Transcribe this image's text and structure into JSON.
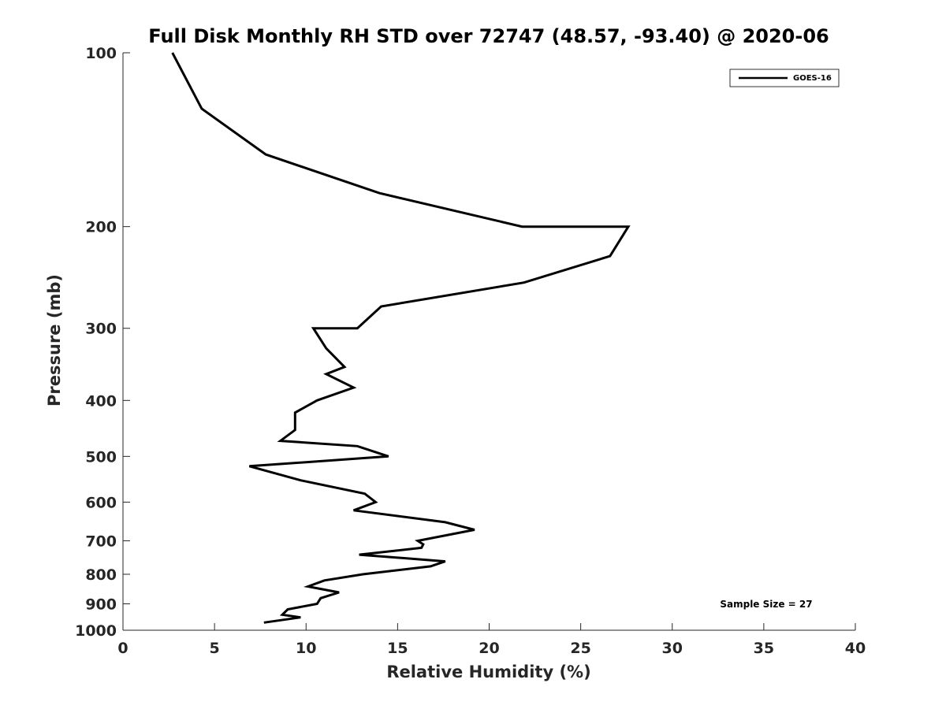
{
  "chart_data": {
    "type": "line",
    "title": "Full Disk Monthly RH STD over 72747 (48.57, -93.40) @ 2020-06",
    "xlabel": "Relative Humidity (%)",
    "ylabel": "Pressure (mb)",
    "xlim": [
      0,
      40
    ],
    "ylim": [
      100,
      1000
    ],
    "yscale": "log",
    "yreversed": true,
    "xticks": [
      "0",
      "5",
      "10",
      "15",
      "20",
      "25",
      "30",
      "35",
      "40"
    ],
    "yticks": [
      "100",
      "200",
      "300",
      "400",
      "500",
      "600",
      "700",
      "800",
      "900",
      "1000"
    ],
    "grid": false,
    "legend_position": "top-right",
    "annotation": "Sample Size = 27",
    "series": [
      {
        "name": "GOES-16",
        "color": "#000000",
        "points": [
          [
            2.7,
            100
          ],
          [
            4.3,
            125
          ],
          [
            7.8,
            150
          ],
          [
            14.0,
            175
          ],
          [
            21.8,
            200
          ],
          [
            27.6,
            200
          ],
          [
            26.6,
            225
          ],
          [
            21.9,
            250
          ],
          [
            14.1,
            275
          ],
          [
            12.8,
            300
          ],
          [
            10.4,
            300
          ],
          [
            11.1,
            325
          ],
          [
            12.1,
            350
          ],
          [
            11.1,
            360
          ],
          [
            12.6,
            380
          ],
          [
            10.6,
            400
          ],
          [
            9.4,
            420
          ],
          [
            9.4,
            450
          ],
          [
            8.6,
            470
          ],
          [
            12.8,
            480
          ],
          [
            14.5,
            500
          ],
          [
            6.9,
            520
          ],
          [
            9.7,
            550
          ],
          [
            13.2,
            580
          ],
          [
            13.8,
            600
          ],
          [
            12.6,
            620
          ],
          [
            17.6,
            650
          ],
          [
            19.2,
            670
          ],
          [
            16.1,
            700
          ],
          [
            16.4,
            710
          ],
          [
            16.3,
            720
          ],
          [
            12.9,
            740
          ],
          [
            17.6,
            760
          ],
          [
            16.8,
            775
          ],
          [
            13.1,
            800
          ],
          [
            11.0,
            820
          ],
          [
            10.1,
            840
          ],
          [
            11.8,
            860
          ],
          [
            10.8,
            880
          ],
          [
            10.6,
            900
          ],
          [
            9.0,
            920
          ],
          [
            8.7,
            940
          ],
          [
            9.7,
            950
          ],
          [
            7.7,
            970
          ]
        ]
      }
    ]
  }
}
